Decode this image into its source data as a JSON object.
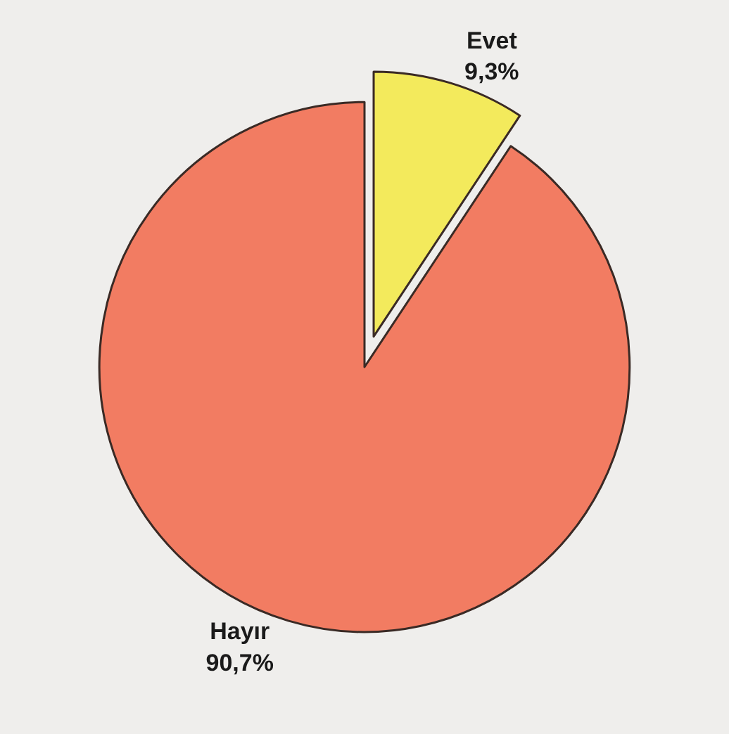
{
  "chart_data": {
    "type": "pie",
    "categories": [
      "Evet",
      "Hayır"
    ],
    "values": [
      9.3,
      90.7
    ],
    "value_labels": [
      "9,3%",
      "90,7%"
    ],
    "colors": [
      "#f3ea5c",
      "#f27c62"
    ],
    "legend": false
  }
}
